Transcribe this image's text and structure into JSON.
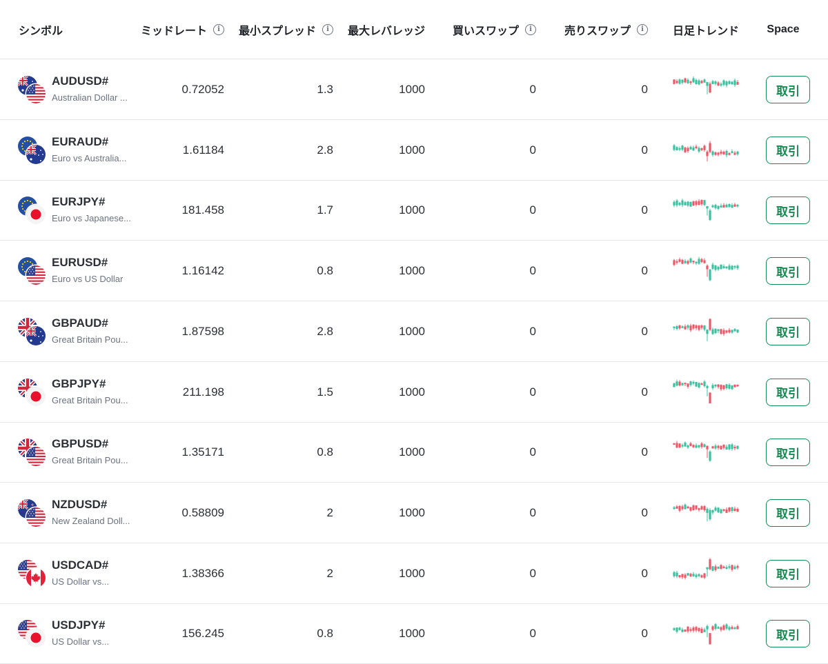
{
  "header": {
    "symbol": "シンボル",
    "mid_rate": "ミッドレート",
    "min_spread": "最小スプレッド",
    "max_leverage": "最大レバレッジ",
    "buy_swap": "買いスワップ",
    "sell_swap": "売りスワップ",
    "daily_trend": "日足トレンド",
    "space": "Space",
    "info_glyph": "i"
  },
  "colors": {
    "up": "#3cc0a0",
    "down": "#e8596a",
    "trade": "#178a52"
  },
  "rows": [
    {
      "symbol": "AUDUSD#",
      "description": "Australian Dollar ...",
      "mid_rate": "0.72052",
      "min_spread": "1.3",
      "max_leverage": "1000",
      "buy_swap": "0",
      "sell_swap": "0",
      "trade_label": "取引",
      "flags": [
        "au-flag-icon",
        "us-flag-icon"
      ]
    },
    {
      "symbol": "EURAUD#",
      "description": "Euro vs Australia...",
      "mid_rate": "1.61184",
      "min_spread": "2.8",
      "max_leverage": "1000",
      "buy_swap": "0",
      "sell_swap": "0",
      "trade_label": "取引",
      "flags": [
        "eu-flag-icon",
        "au-flag-icon"
      ]
    },
    {
      "symbol": "EURJPY#",
      "description": "Euro vs Japanese...",
      "mid_rate": "181.458",
      "min_spread": "1.7",
      "max_leverage": "1000",
      "buy_swap": "0",
      "sell_swap": "0",
      "trade_label": "取引",
      "flags": [
        "eu-flag-icon",
        "jp-flag-icon"
      ]
    },
    {
      "symbol": "EURUSD#",
      "description": "Euro vs US Dollar",
      "mid_rate": "1.16142",
      "min_spread": "0.8",
      "max_leverage": "1000",
      "buy_swap": "0",
      "sell_swap": "0",
      "trade_label": "取引",
      "flags": [
        "eu-flag-icon",
        "us-flag-icon"
      ]
    },
    {
      "symbol": "GBPAUD#",
      "description": "Great Britain Pou...",
      "mid_rate": "1.87598",
      "min_spread": "2.8",
      "max_leverage": "1000",
      "buy_swap": "0",
      "sell_swap": "0",
      "trade_label": "取引",
      "flags": [
        "gb-flag-icon",
        "au-flag-icon"
      ]
    },
    {
      "symbol": "GBPJPY#",
      "description": "Great Britain Pou...",
      "mid_rate": "211.198",
      "min_spread": "1.5",
      "max_leverage": "1000",
      "buy_swap": "0",
      "sell_swap": "0",
      "trade_label": "取引",
      "flags": [
        "gb-flag-icon",
        "jp-flag-icon"
      ]
    },
    {
      "symbol": "GBPUSD#",
      "description": "Great Britain Pou...",
      "mid_rate": "1.35171",
      "min_spread": "0.8",
      "max_leverage": "1000",
      "buy_swap": "0",
      "sell_swap": "0",
      "trade_label": "取引",
      "flags": [
        "gb-flag-icon",
        "us-flag-icon"
      ]
    },
    {
      "symbol": "NZDUSD#",
      "description": "New Zealand Doll...",
      "mid_rate": "0.58809",
      "min_spread": "2",
      "max_leverage": "1000",
      "buy_swap": "0",
      "sell_swap": "0",
      "trade_label": "取引",
      "flags": [
        "nz-flag-icon",
        "us-flag-icon"
      ]
    },
    {
      "symbol": "USDCAD#",
      "description": "US Dollar vs...",
      "mid_rate": "1.38366",
      "min_spread": "2",
      "max_leverage": "1000",
      "buy_swap": "0",
      "sell_swap": "0",
      "trade_label": "取引",
      "flags": [
        "us-flag-icon",
        "ca-flag-icon"
      ]
    },
    {
      "symbol": "USDJPY#",
      "description": "US Dollar vs...",
      "mid_rate": "156.245",
      "min_spread": "0.8",
      "max_leverage": "1000",
      "buy_swap": "0",
      "sell_swap": "0",
      "trade_label": "取引",
      "flags": [
        "us-flag-icon",
        "jp-flag-icon"
      ]
    }
  ]
}
